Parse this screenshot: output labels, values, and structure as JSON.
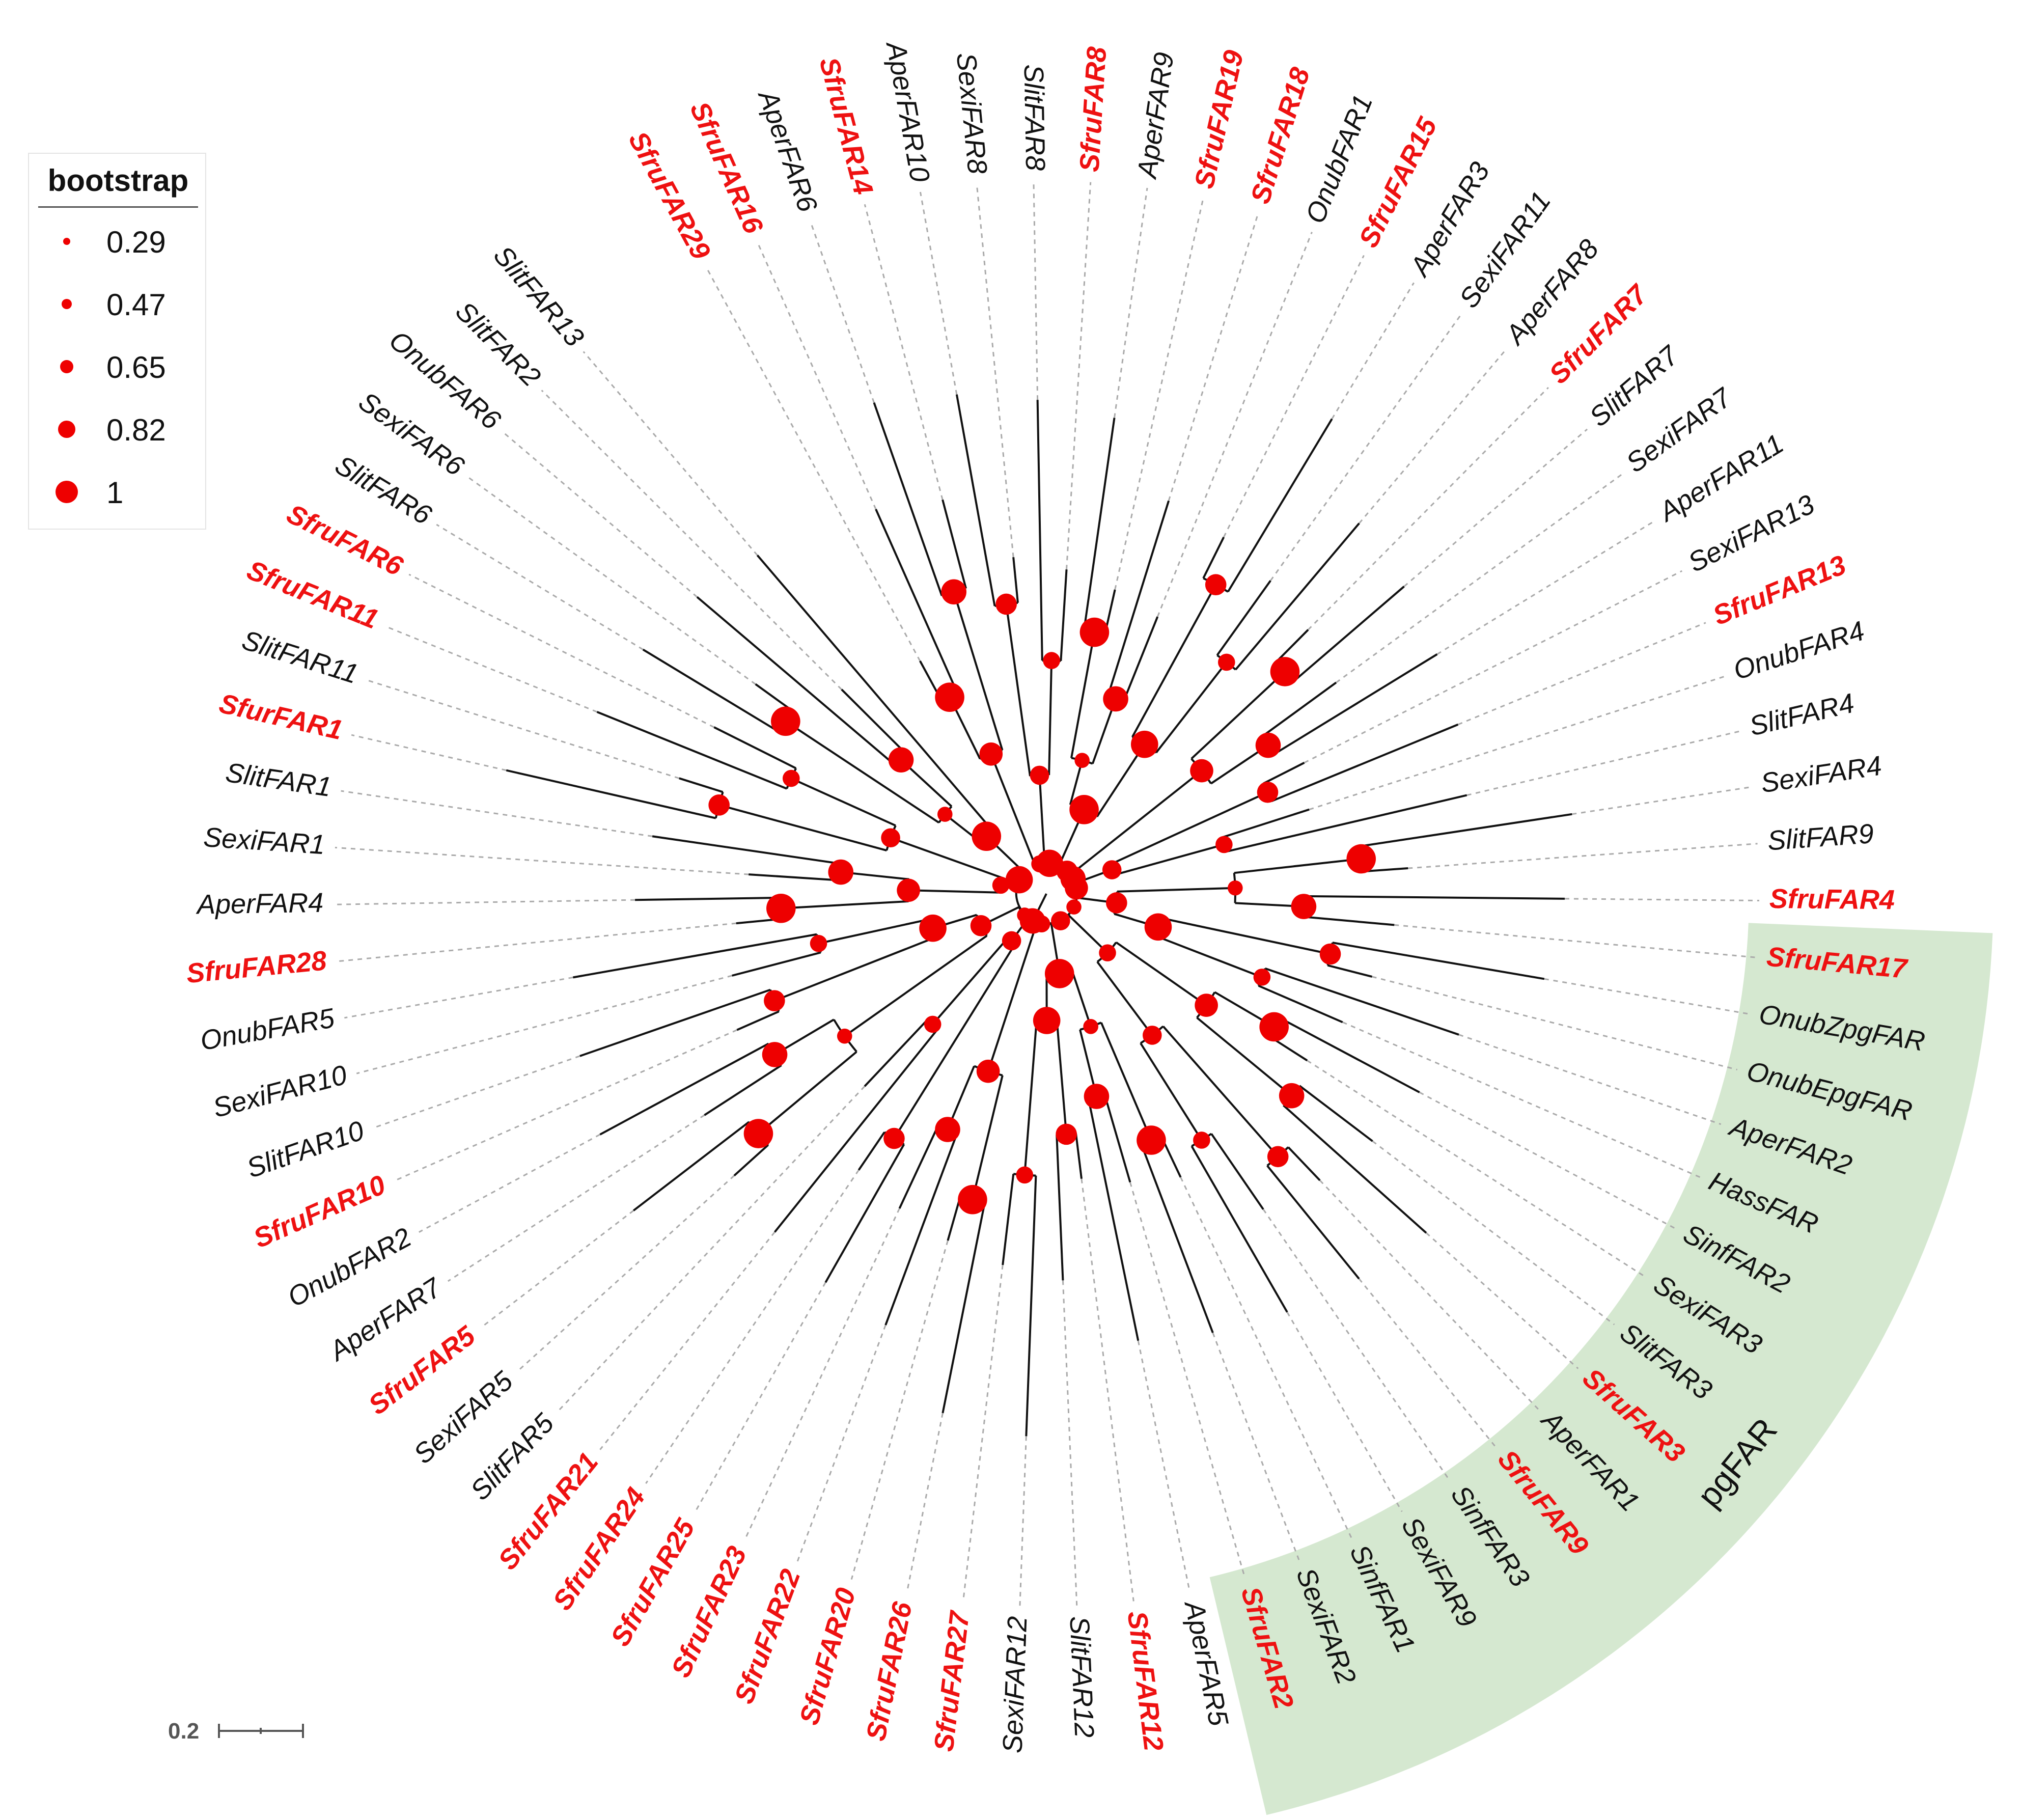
{
  "legend": {
    "title": "bootstrap",
    "items": [
      {
        "label": "0.29",
        "value": 0.29
      },
      {
        "label": "0.47",
        "value": 0.47
      },
      {
        "label": "0.65",
        "value": 0.65
      },
      {
        "label": "0.82",
        "value": 0.82
      },
      {
        "label": "1",
        "value": 1
      }
    ]
  },
  "scale_bar": {
    "label": "0.2"
  },
  "clade_label": "pgFAR",
  "colors": {
    "highlight": "#ee1111",
    "normal": "#111111",
    "node": "#ee0000",
    "clade_fill": "#d5e8d0",
    "guide": "#aaaaaa"
  },
  "taxa": [
    {
      "name": "SfruFAR29",
      "highlight": true
    },
    {
      "name": "SfruFAR16",
      "highlight": true
    },
    {
      "name": "AperFAR6",
      "highlight": false
    },
    {
      "name": "SfruFAR14",
      "highlight": true
    },
    {
      "name": "AperFAR10",
      "highlight": false
    },
    {
      "name": "SexiFAR8",
      "highlight": false
    },
    {
      "name": "SlitFAR8",
      "highlight": false
    },
    {
      "name": "SfruFAR8",
      "highlight": true
    },
    {
      "name": "AperFAR9",
      "highlight": false
    },
    {
      "name": "SfruFAR19",
      "highlight": true
    },
    {
      "name": "SfruFAR18",
      "highlight": true
    },
    {
      "name": "OnubFAR1",
      "highlight": false
    },
    {
      "name": "SfruFAR15",
      "highlight": true
    },
    {
      "name": "AperFAR3",
      "highlight": false
    },
    {
      "name": "SexiFAR11",
      "highlight": false
    },
    {
      "name": "AperFAR8",
      "highlight": false
    },
    {
      "name": "SfruFAR7",
      "highlight": true
    },
    {
      "name": "SlitFAR7",
      "highlight": false
    },
    {
      "name": "SexiFAR7",
      "highlight": false
    },
    {
      "name": "AperFAR11",
      "highlight": false
    },
    {
      "name": "SexiFAR13",
      "highlight": false
    },
    {
      "name": "SfruFAR13",
      "highlight": true
    },
    {
      "name": "OnubFAR4",
      "highlight": false
    },
    {
      "name": "SlitFAR4",
      "highlight": false
    },
    {
      "name": "SexiFAR4",
      "highlight": false
    },
    {
      "name": "SlitFAR9",
      "highlight": false
    },
    {
      "name": "SfruFAR4",
      "highlight": true
    },
    {
      "name": "SfruFAR17",
      "highlight": true
    },
    {
      "name": "OnubZpgFAR",
      "highlight": false
    },
    {
      "name": "OnubEpgFAR",
      "highlight": false
    },
    {
      "name": "AperFAR2",
      "highlight": false
    },
    {
      "name": "HassFAR",
      "highlight": false
    },
    {
      "name": "SinfFAR2",
      "highlight": false
    },
    {
      "name": "SexiFAR3",
      "highlight": false
    },
    {
      "name": "SlitFAR3",
      "highlight": false
    },
    {
      "name": "SfruFAR3",
      "highlight": true
    },
    {
      "name": "AperFAR1",
      "highlight": false
    },
    {
      "name": "SfruFAR9",
      "highlight": true
    },
    {
      "name": "SinfFAR3",
      "highlight": false
    },
    {
      "name": "SexiFAR9",
      "highlight": false
    },
    {
      "name": "SinfFAR1",
      "highlight": false
    },
    {
      "name": "SexiFAR2",
      "highlight": false
    },
    {
      "name": "SfruFAR2",
      "highlight": true
    },
    {
      "name": "AperFAR5",
      "highlight": false
    },
    {
      "name": "SfruFAR12",
      "highlight": true
    },
    {
      "name": "SlitFAR12",
      "highlight": false
    },
    {
      "name": "SexiFAR12",
      "highlight": false
    },
    {
      "name": "SfruFAR27",
      "highlight": true
    },
    {
      "name": "SfruFAR26",
      "highlight": true
    },
    {
      "name": "SfruFAR20",
      "highlight": true
    },
    {
      "name": "SfruFAR22",
      "highlight": true
    },
    {
      "name": "SfruFAR23",
      "highlight": true
    },
    {
      "name": "SfruFAR25",
      "highlight": true
    },
    {
      "name": "SfruFAR24",
      "highlight": true
    },
    {
      "name": "SfruFAR21",
      "highlight": true
    },
    {
      "name": "SlitFAR5",
      "highlight": false
    },
    {
      "name": "SexiFAR5",
      "highlight": false
    },
    {
      "name": "SfruFAR5",
      "highlight": true
    },
    {
      "name": "AperFAR7",
      "highlight": false
    },
    {
      "name": "OnubFAR2",
      "highlight": false
    },
    {
      "name": "SfruFAR10",
      "highlight": true
    },
    {
      "name": "SlitFAR10",
      "highlight": false
    },
    {
      "name": "SexiFAR10",
      "highlight": false
    },
    {
      "name": "OnubFAR5",
      "highlight": false
    },
    {
      "name": "SfruFAR28",
      "highlight": true
    },
    {
      "name": "AperFAR4",
      "highlight": false
    },
    {
      "name": "SexiFAR1",
      "highlight": false
    },
    {
      "name": "SlitFAR1",
      "highlight": false
    },
    {
      "name": "SfurFAR1",
      "highlight": true
    },
    {
      "name": "SlitFAR11",
      "highlight": false
    },
    {
      "name": "SfruFAR11",
      "highlight": true
    },
    {
      "name": "SfruFAR6",
      "highlight": true
    },
    {
      "name": "SlitFAR6",
      "highlight": false
    },
    {
      "name": "SexiFAR6",
      "highlight": false
    },
    {
      "name": "OnubFAR6",
      "highlight": false
    },
    {
      "name": "SlitFAR2",
      "highlight": false
    },
    {
      "name": "SlitFAR13",
      "highlight": false
    }
  ]
}
